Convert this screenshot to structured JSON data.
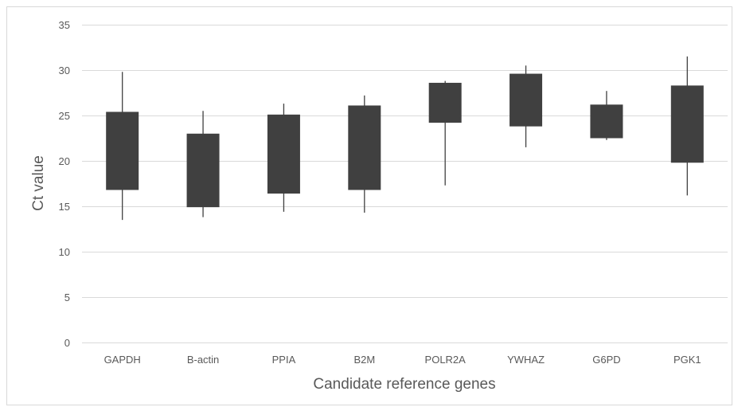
{
  "chart_data": {
    "type": "box",
    "title": "",
    "xlabel": "Candidate reference genes",
    "ylabel": "Ct value",
    "ylim": [
      0,
      35
    ],
    "yticks": [
      0,
      5,
      10,
      15,
      20,
      25,
      30,
      35
    ],
    "grid": true,
    "legend": "none",
    "colors": {
      "box": "#404040",
      "grid": "#d9d9d9",
      "text": "#595959"
    },
    "categories": [
      "GAPDH",
      "B-actin",
      "PPIA",
      "B2M",
      "POLR2A",
      "YWHAZ",
      "G6PD",
      "PGK1"
    ],
    "series": [
      {
        "min": [
          13.5,
          13.8,
          14.4,
          14.3,
          17.3,
          21.5,
          22.3,
          16.2
        ],
        "q1": [
          16.8,
          14.9,
          16.4,
          16.8,
          24.2,
          23.8,
          22.5,
          19.8
        ],
        "q3": [
          25.4,
          23.0,
          25.1,
          26.1,
          28.6,
          29.6,
          26.2,
          28.3
        ],
        "max": [
          29.8,
          25.5,
          26.3,
          27.2,
          28.8,
          30.5,
          27.7,
          31.5
        ]
      }
    ]
  }
}
